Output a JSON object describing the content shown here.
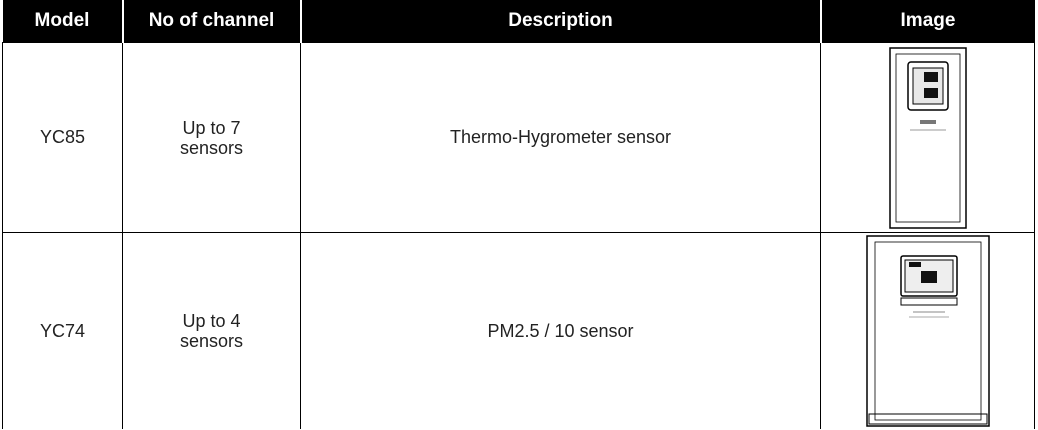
{
  "table": {
    "headers": [
      "Model",
      "No of channel",
      "Description",
      "Image"
    ],
    "rows": [
      [
        "YC85",
        "Up to 7 sensors",
        "Thermo-Hygrometer sensor"
      ],
      [
        "YC74",
        "Up to 4 sensors",
        "PM2.5 / 10 sensor"
      ]
    ]
  }
}
